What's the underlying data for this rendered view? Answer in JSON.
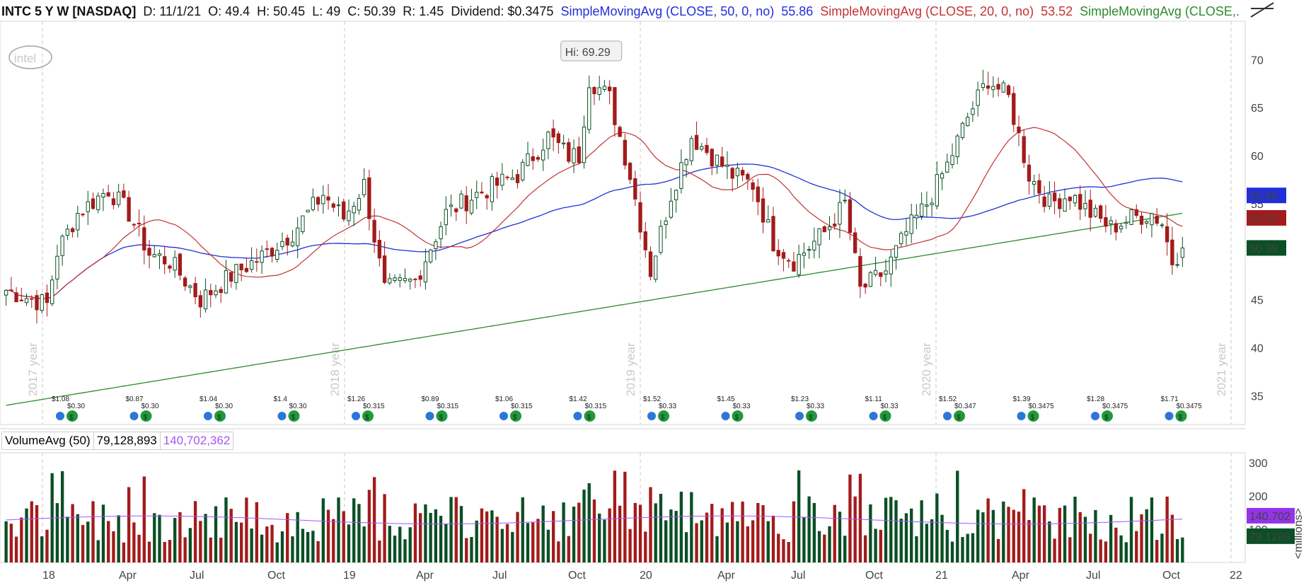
{
  "header": {
    "symbol": "INTC 5 Y W [NASDAQ]",
    "date": "D: 11/1/21",
    "open": "O: 49.4",
    "high": "H: 50.45",
    "low": "L: 49",
    "close": "C: 50.39",
    "range": "R: 1.45",
    "dividend": "Dividend: $0.3475",
    "sma50_label": "SimpleMovingAvg (CLOSE, 50, 0, no)",
    "sma50_value": "55.86",
    "sma20_label": "SimpleMovingAvg (CLOSE, 20, 0, no)",
    "sma20_value": "53.52",
    "sma200_label": "SimpleMovingAvg (CLOSE,..."
  },
  "colors": {
    "up": "#0a4f25",
    "down": "#a31b1b",
    "sma50": "#2130d8",
    "sma20": "#c23333",
    "sma200": "#2e8b2e",
    "volavg": "#a855f7"
  },
  "volume_header": {
    "label": "VolumeAvg (50)",
    "vol": "79,128,893",
    "avg": "140,702,362"
  },
  "logo": "intel",
  "chart_data": [
    {
      "type": "candlestick",
      "title": "INTC 5 Y W [NASDAQ]",
      "y_ticks": [
        "70",
        "65",
        "60",
        "55",
        "50",
        "45",
        "40",
        "35"
      ],
      "ylim": [
        32,
        74
      ],
      "x_labels": [
        "18",
        "Apr",
        "Jul",
        "Oct",
        "19",
        "Apr",
        "Jul",
        "Oct",
        "20",
        "Apr",
        "Jul",
        "Oct",
        "21",
        "Apr",
        "Jul",
        "Oct",
        "22"
      ],
      "year_labels": [
        "2017 year",
        "2018 year",
        "2019 year",
        "2020 year",
        "2021 year"
      ],
      "annotation": "Hi: 69.29",
      "price_badges": {
        "sma50": "55.86",
        "sma20": "53.52",
        "close": "50.39"
      },
      "close_anchors": [
        [
          0,
          46.0
        ],
        [
          8,
          44.5
        ],
        [
          10,
          50
        ],
        [
          14,
          54
        ],
        [
          20,
          56.5
        ],
        [
          24,
          54
        ],
        [
          28,
          49.8
        ],
        [
          32,
          49
        ],
        [
          38,
          45
        ],
        [
          44,
          47.5
        ],
        [
          50,
          49.5
        ],
        [
          56,
          52
        ],
        [
          62,
          56
        ],
        [
          66,
          53.5
        ],
        [
          70,
          57
        ],
        [
          74,
          46
        ],
        [
          80,
          47
        ],
        [
          86,
          54
        ],
        [
          92,
          56
        ],
        [
          100,
          58
        ],
        [
          106,
          62
        ],
        [
          110,
          60
        ],
        [
          112,
          60
        ],
        [
          114,
          68
        ],
        [
          118,
          66
        ],
        [
          122,
          58
        ],
        [
          126,
          48
        ],
        [
          130,
          56
        ],
        [
          134,
          62
        ],
        [
          138,
          60
        ],
        [
          142,
          58
        ],
        [
          146,
          57
        ],
        [
          150,
          51
        ],
        [
          154,
          49
        ],
        [
          160,
          52
        ],
        [
          164,
          55
        ],
        [
          167,
          46
        ],
        [
          172,
          48
        ],
        [
          176,
          52
        ],
        [
          180,
          55
        ],
        [
          184,
          59
        ],
        [
          188,
          64
        ],
        [
          192,
          68
        ],
        [
          196,
          66
        ],
        [
          200,
          58
        ],
        [
          204,
          55
        ],
        [
          208,
          56
        ],
        [
          212,
          54
        ],
        [
          216,
          52.5
        ],
        [
          220,
          53.5
        ],
        [
          224,
          54
        ],
        [
          226,
          53
        ],
        [
          228,
          49
        ],
        [
          230,
          50.39
        ]
      ],
      "dividends": [
        {
          "year": "$1.08",
          "amount": "$0.30"
        },
        {
          "year": "$0.87",
          "amount": "$0.30"
        },
        {
          "year": "$1.04",
          "amount": "$0.30"
        },
        {
          "year": "$1.4",
          "amount": "$0.30"
        },
        {
          "year": "$1.26",
          "amount": "$0.315"
        },
        {
          "year": "$0.89",
          "amount": "$0.315"
        },
        {
          "year": "$1.06",
          "amount": "$0.315"
        },
        {
          "year": "$1.42",
          "amount": "$0.315"
        },
        {
          "year": "$1.52",
          "amount": "$0.33"
        },
        {
          "year": "$1.45",
          "amount": "$0.33"
        },
        {
          "year": "$1.23",
          "amount": "$0.33"
        },
        {
          "year": "$1.11",
          "amount": "$0.33"
        },
        {
          "year": "$1.52",
          "amount": "$0.347"
        },
        {
          "year": "$1.39",
          "amount": "$0.3475"
        },
        {
          "year": "$1.28",
          "amount": "$0.3475"
        },
        {
          "year": "$1.71",
          "amount": "$0.3475"
        }
      ]
    },
    {
      "type": "bar",
      "title": "VolumeAvg (50)",
      "y_ticks": [
        "300",
        "200",
        "100"
      ],
      "ylim": [
        0,
        330
      ],
      "unit": "<millions>",
      "price_badges": {
        "avg": "140.702",
        "vol": "79.1289"
      }
    }
  ]
}
